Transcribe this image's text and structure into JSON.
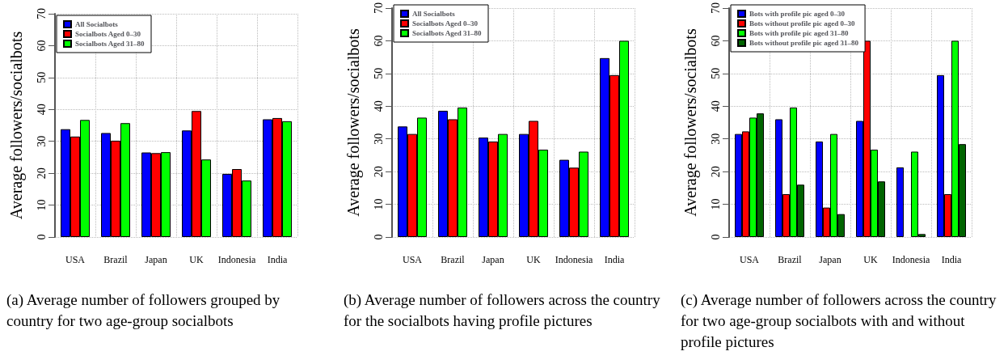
{
  "chart_data": [
    {
      "type": "bar",
      "ylabel": "Average followers/socialbots",
      "categories": [
        "USA",
        "Brazil",
        "Japan",
        "UK",
        "Indonesia",
        "India"
      ],
      "series": [
        {
          "name": "All Socialbots",
          "color": "#0000ff",
          "values": [
            33.8,
            32.6,
            26.5,
            33.4,
            19.8,
            36.9
          ]
        },
        {
          "name": "Socialbots Aged 0–30",
          "color": "#ff0000",
          "values": [
            31.5,
            30.2,
            26.3,
            39.5,
            21.3,
            37.3
          ]
        },
        {
          "name": "Socialbots Aged 31–80",
          "color": "#00ff00",
          "values": [
            36.7,
            35.7,
            26.6,
            24.3,
            17.7,
            36.3
          ]
        }
      ],
      "ylim": [
        0,
        70
      ],
      "yticks": [
        0,
        10,
        20,
        30,
        40,
        50,
        60,
        70
      ],
      "grid": true,
      "legend": "top left",
      "annotations": [
        "(a) Average number of followers grouped by country for two age-group socialbots"
      ]
    },
    {
      "type": "bar",
      "ylabel": "Average followers/socialbots",
      "categories": [
        "USA",
        "Brazil",
        "Japan",
        "UK",
        "Indonesia",
        "India"
      ],
      "series": [
        {
          "name": "All Socialbots",
          "color": "#0000ff",
          "values": [
            33.8,
            38.6,
            30.4,
            31.5,
            23.6,
            54.7
          ]
        },
        {
          "name": "Socialbots Aged 0–30",
          "color": "#ff0000",
          "values": [
            31.5,
            36.0,
            29.2,
            35.5,
            21.2,
            49.5
          ]
        },
        {
          "name": "Socialbots Aged 31–80",
          "color": "#00ff00",
          "values": [
            36.5,
            39.6,
            31.5,
            26.7,
            26.1,
            60
          ]
        }
      ],
      "ylim": [
        0,
        70
      ],
      "yticks": [
        0,
        10,
        20,
        30,
        40,
        50,
        60,
        70
      ],
      "grid": true,
      "legend": "top left",
      "annotations": [
        "(b) Average number of followers across the country for the socialbots having profile pictures"
      ]
    },
    {
      "type": "bar",
      "ylabel": "Average followers/socialbots",
      "categories": [
        "USA",
        "Brazil",
        "Japan",
        "UK",
        "Indonesia",
        "India"
      ],
      "series": [
        {
          "name": "Bots with profile pic aged 0–30",
          "color": "#0000ff",
          "values": [
            31.5,
            36.0,
            29.2,
            35.5,
            21.3,
            49.5
          ]
        },
        {
          "name": "Bots without profile pic aged 0–30",
          "color": "#ff0000",
          "values": [
            32.3,
            13.1,
            9.0,
            60,
            0,
            13.1
          ]
        },
        {
          "name": "Bots with profile pic aged 31–80",
          "color": "#00ff00",
          "values": [
            36.5,
            39.6,
            31.5,
            26.7,
            26.1,
            60
          ]
        },
        {
          "name": "Bots without profile pic aged 31–80",
          "color": "#006400",
          "values": [
            37.8,
            16.0,
            7.0,
            17.0,
            0.9,
            28.4
          ]
        }
      ],
      "ylim": [
        0,
        70
      ],
      "yticks": [
        0,
        10,
        20,
        30,
        40,
        50,
        60,
        70
      ],
      "grid": true,
      "legend": "top left",
      "annotations": [
        "(c) Average number of followers across the country for two age-group socialbots with and without profile pictures"
      ]
    }
  ]
}
